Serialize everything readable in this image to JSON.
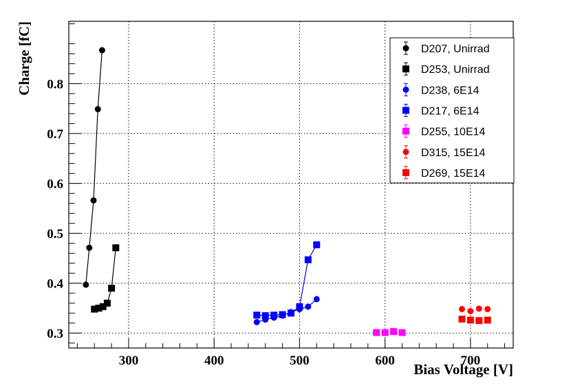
{
  "chart_data": {
    "type": "scatter",
    "title": "",
    "xlabel": "Bias Voltage [V]",
    "ylabel": "Charge [fC]",
    "xlim": [
      230,
      750
    ],
    "ylim": [
      0.27,
      0.925
    ],
    "grid": true,
    "legend_position": "top-right",
    "x_ticks": [
      300,
      400,
      500,
      600,
      700
    ],
    "x_tick_labels": [
      "300",
      "400",
      "500",
      "600",
      "700"
    ],
    "y_ticks": [
      0.3,
      0.4,
      0.5,
      0.6,
      0.7,
      0.8
    ],
    "y_tick_labels": [
      "0.3",
      "0.4",
      "0.5",
      "0.6",
      "0.7",
      "0.8"
    ],
    "series": [
      {
        "name": "D207, Unirrad",
        "color": "#000000",
        "marker": "circle",
        "line": true,
        "x": [
          250,
          254,
          259,
          264,
          269
        ],
        "y": [
          0.397,
          0.471,
          0.566,
          0.749,
          0.867
        ]
      },
      {
        "name": "D253, Unirrad",
        "color": "#000000",
        "marker": "square",
        "line": true,
        "x": [
          260,
          265,
          270,
          275,
          280,
          285
        ],
        "y": [
          0.348,
          0.35,
          0.353,
          0.36,
          0.39,
          0.471
        ]
      },
      {
        "name": "D238, 6E14",
        "color": "#0000ff",
        "marker": "circle",
        "line": true,
        "x": [
          450,
          460,
          470,
          480,
          490,
          500,
          510,
          520
        ],
        "y": [
          0.322,
          0.327,
          0.331,
          0.335,
          0.342,
          0.348,
          0.353,
          0.368
        ]
      },
      {
        "name": "D217, 6E14",
        "color": "#0000ff",
        "marker": "square",
        "line": true,
        "x": [
          450,
          460,
          470,
          480,
          490,
          500,
          510,
          520
        ],
        "y": [
          0.336,
          0.335,
          0.336,
          0.337,
          0.34,
          0.353,
          0.447,
          0.477
        ]
      },
      {
        "name": "D255, 10E14",
        "color": "#ff00ff",
        "marker": "square",
        "line": false,
        "x": [
          590,
          600,
          610,
          620
        ],
        "y": [
          0.301,
          0.301,
          0.303,
          0.301
        ]
      },
      {
        "name": "D315, 15E14",
        "color": "#ff0000",
        "marker": "circle",
        "line": false,
        "x": [
          690,
          700,
          710,
          720
        ],
        "y": [
          0.348,
          0.344,
          0.349,
          0.348
        ]
      },
      {
        "name": "D269, 15E14",
        "color": "#ff0000",
        "marker": "square",
        "line": false,
        "x": [
          690,
          700,
          710,
          720
        ],
        "y": [
          0.328,
          0.326,
          0.325,
          0.326
        ]
      }
    ]
  }
}
